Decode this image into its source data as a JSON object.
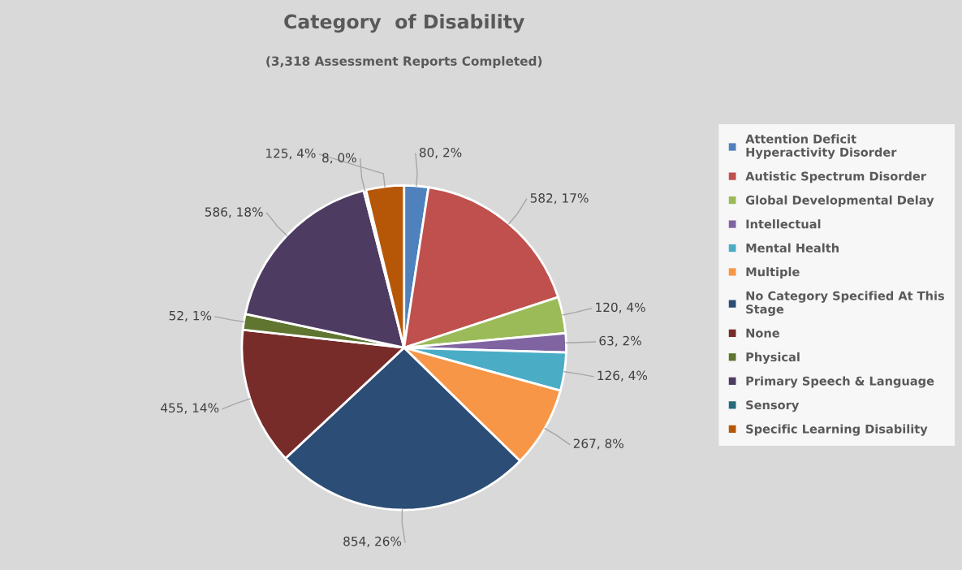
{
  "chart_data": {
    "type": "pie",
    "title": "Category  of Disability",
    "subtitle": "(3,318 Assessment Reports Completed)",
    "categories": [
      "Attention Deficit Hyperactivity Disorder",
      "Autistic Spectrum Disorder",
      "Global Developmental Delay",
      "Intellectual",
      "Mental Health",
      "Multiple",
      "No Category Specified At This Stage",
      "None",
      "Physical",
      "Primary Speech & Language",
      "Sensory",
      "Specific Learning Disability"
    ],
    "values": [
      80,
      582,
      120,
      63,
      126,
      267,
      854,
      455,
      52,
      586,
      8,
      125
    ],
    "colors": [
      "#4f81bd",
      "#c0504d",
      "#9bbb59",
      "#8064a2",
      "#4bacc6",
      "#f79646",
      "#2c4d75",
      "#772c2a",
      "#5f7530",
      "#4d3b62",
      "#276a7c",
      "#b65708"
    ],
    "value_labels": [
      "80, 2%",
      "582, 17%",
      "120, 4%",
      "63, 2%",
      "126, 4%",
      "267, 8%",
      "854, 26%",
      "455, 14%",
      "52, 1%",
      "586, 18%",
      "8, 0%",
      "125, 4%"
    ],
    "legend": "right"
  }
}
